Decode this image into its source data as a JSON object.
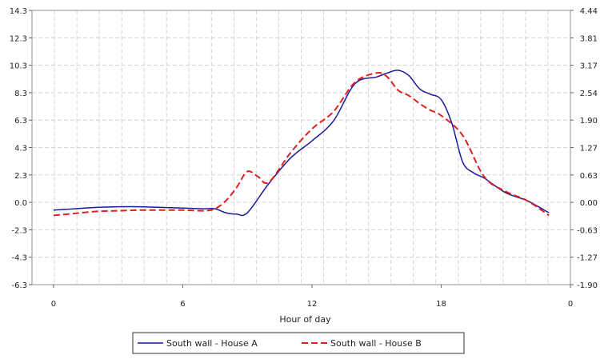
{
  "chart_data": {
    "type": "line",
    "xlabel": "Hour of day",
    "x_ticks": [
      "0",
      "6",
      "12",
      "18",
      "0"
    ],
    "xlim": [
      -1,
      24
    ],
    "y_left_ticks": [
      "14.3",
      "12.3",
      "10.3",
      "8.3",
      "6.3",
      "4.3",
      "2.3",
      "0.0",
      "-2.3",
      "-4.3",
      "-6.3"
    ],
    "ylim_left": [
      -6.3,
      14.3
    ],
    "y_right_ticks": [
      "4.44",
      "3.81",
      "3.17",
      "2.54",
      "1.90",
      "1.27",
      "0.63",
      "0.00",
      "-0.63",
      "-1.27",
      "-1.90"
    ],
    "ylim_right": [
      -1.9,
      4.44
    ],
    "grid": true,
    "legend_position": "bottom",
    "series": [
      {
        "name": "South wall - House A",
        "color": "#1a1a9c",
        "dash": "solid",
        "x": [
          0,
          1,
          2,
          3,
          4,
          5,
          6,
          7,
          7.5,
          8,
          8.5,
          9,
          10,
          11,
          12,
          13,
          14,
          15,
          15.5,
          16,
          16.5,
          17,
          17.5,
          18,
          18.5,
          19,
          19.5,
          20,
          21,
          22,
          23
        ],
        "y": [
          -0.7,
          -0.6,
          -0.5,
          -0.45,
          -0.45,
          -0.5,
          -0.55,
          -0.6,
          -0.6,
          -0.9,
          -1.0,
          -0.9,
          1.3,
          3.2,
          4.5,
          6.0,
          8.8,
          9.3,
          9.6,
          9.8,
          9.4,
          8.4,
          8.0,
          7.6,
          5.8,
          2.9,
          2.1,
          1.7,
          0.6,
          0.0,
          -0.9
        ]
      },
      {
        "name": "South wall - House B",
        "color": "#e02020",
        "dash": "dashed",
        "x": [
          0,
          1,
          2,
          3,
          4,
          5,
          6,
          7,
          7.5,
          8,
          8.5,
          9,
          9.5,
          10,
          11,
          12,
          13,
          14,
          15,
          15.5,
          16,
          16.5,
          17,
          17.5,
          18,
          19,
          20,
          21,
          22,
          23
        ],
        "y": [
          -1.1,
          -0.95,
          -0.8,
          -0.75,
          -0.7,
          -0.7,
          -0.7,
          -0.75,
          -0.6,
          0.0,
          1.0,
          2.2,
          1.8,
          1.4,
          3.6,
          5.4,
          6.7,
          8.9,
          9.6,
          9.3,
          8.3,
          7.9,
          7.3,
          6.8,
          6.4,
          4.9,
          1.8,
          0.7,
          0.0,
          -1.1
        ]
      }
    ]
  }
}
